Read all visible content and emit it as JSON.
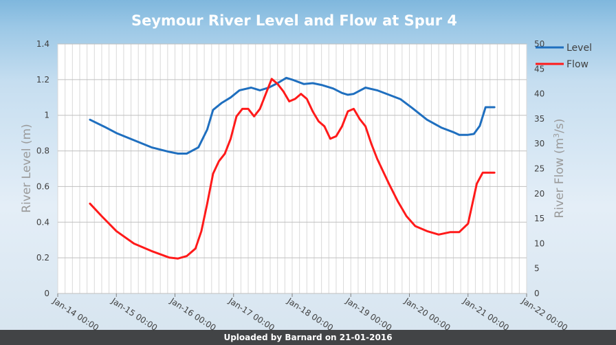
{
  "chart_data": {
    "type": "line",
    "title": "Seymour River Level and Flow at Spur 4",
    "ylabel_left": "River Level (m)",
    "ylabel_right_base": "River Flow (m",
    "ylabel_right_sup": "3",
    "ylabel_right_tail": "/s)",
    "ylim_left": [
      0,
      1.4
    ],
    "ylim_right": [
      0,
      50
    ],
    "left_ticks": [
      "0",
      "0.2",
      "0.4",
      "0.6",
      "0.8",
      "1",
      "1.2",
      "1.4"
    ],
    "right_ticks": [
      "0",
      "5",
      "10",
      "15",
      "20",
      "25",
      "30",
      "35",
      "40",
      "45",
      "50"
    ],
    "xlim": [
      0,
      8
    ],
    "x_ticks": [
      "Jan-14 00:00",
      "Jan-15 00:00",
      "Jan-16 00:00",
      "Jan-17 00:00",
      "Jan-18 00:00",
      "Jan-19 00:00",
      "Jan-20 00:00",
      "Jan-21 00:00",
      "Jan-22 00:00"
    ],
    "x_minor_step": 0.125,
    "grid": true,
    "legend_position": "top-right",
    "series": [
      {
        "name": "Level",
        "axis": "left",
        "color": "#1f6fbf",
        "x": [
          0.55,
          0.8,
          1.0,
          1.3,
          1.6,
          1.9,
          2.05,
          2.2,
          2.4,
          2.55,
          2.65,
          2.8,
          2.95,
          3.1,
          3.3,
          3.45,
          3.6,
          3.75,
          3.85,
          3.9,
          4.0,
          4.2,
          4.35,
          4.5,
          4.7,
          4.85,
          4.95,
          5.05,
          5.25,
          5.45,
          5.65,
          5.85,
          6.05,
          6.3,
          6.55,
          6.75,
          6.85,
          7.0,
          7.1,
          7.2,
          7.3,
          7.45
        ],
        "y": [
          0.975,
          0.935,
          0.9,
          0.86,
          0.82,
          0.795,
          0.785,
          0.785,
          0.82,
          0.92,
          1.03,
          1.07,
          1.1,
          1.14,
          1.155,
          1.14,
          1.155,
          1.18,
          1.2,
          1.21,
          1.2,
          1.175,
          1.18,
          1.17,
          1.15,
          1.125,
          1.115,
          1.12,
          1.155,
          1.14,
          1.115,
          1.09,
          1.04,
          0.975,
          0.93,
          0.905,
          0.89,
          0.89,
          0.895,
          0.94,
          1.045,
          1.045
        ]
      },
      {
        "name": "Flow",
        "axis": "right",
        "color": "#ff1a1a",
        "x": [
          0.55,
          0.75,
          1.0,
          1.3,
          1.6,
          1.9,
          2.05,
          2.2,
          2.35,
          2.45,
          2.55,
          2.65,
          2.75,
          2.85,
          2.95,
          3.05,
          3.15,
          3.25,
          3.35,
          3.45,
          3.55,
          3.65,
          3.75,
          3.85,
          3.95,
          4.05,
          4.15,
          4.25,
          4.35,
          4.45,
          4.55,
          4.65,
          4.75,
          4.85,
          4.95,
          5.05,
          5.15,
          5.25,
          5.35,
          5.45,
          5.55,
          5.65,
          5.8,
          5.95,
          6.1,
          6.3,
          6.5,
          6.7,
          6.85,
          7.0,
          7.15,
          7.25,
          7.35,
          7.45
        ],
        "y": [
          18,
          15.5,
          12.5,
          10,
          8.5,
          7.2,
          7,
          7.5,
          9,
          12.5,
          18,
          24,
          26.5,
          28,
          31,
          35.5,
          37,
          37,
          35.5,
          37,
          40,
          43,
          42,
          40.5,
          38.5,
          39,
          40,
          39,
          36.5,
          34.5,
          33.5,
          31,
          31.5,
          33.5,
          36.5,
          37,
          35,
          33.5,
          30,
          27,
          24.5,
          22,
          18.5,
          15.5,
          13.5,
          12.5,
          11.8,
          12.3,
          12.3,
          14,
          22,
          24.2,
          24.2,
          24.2
        ]
      }
    ]
  },
  "banner": {
    "text": "Uploaded by Barnard on 21-01-2016"
  }
}
